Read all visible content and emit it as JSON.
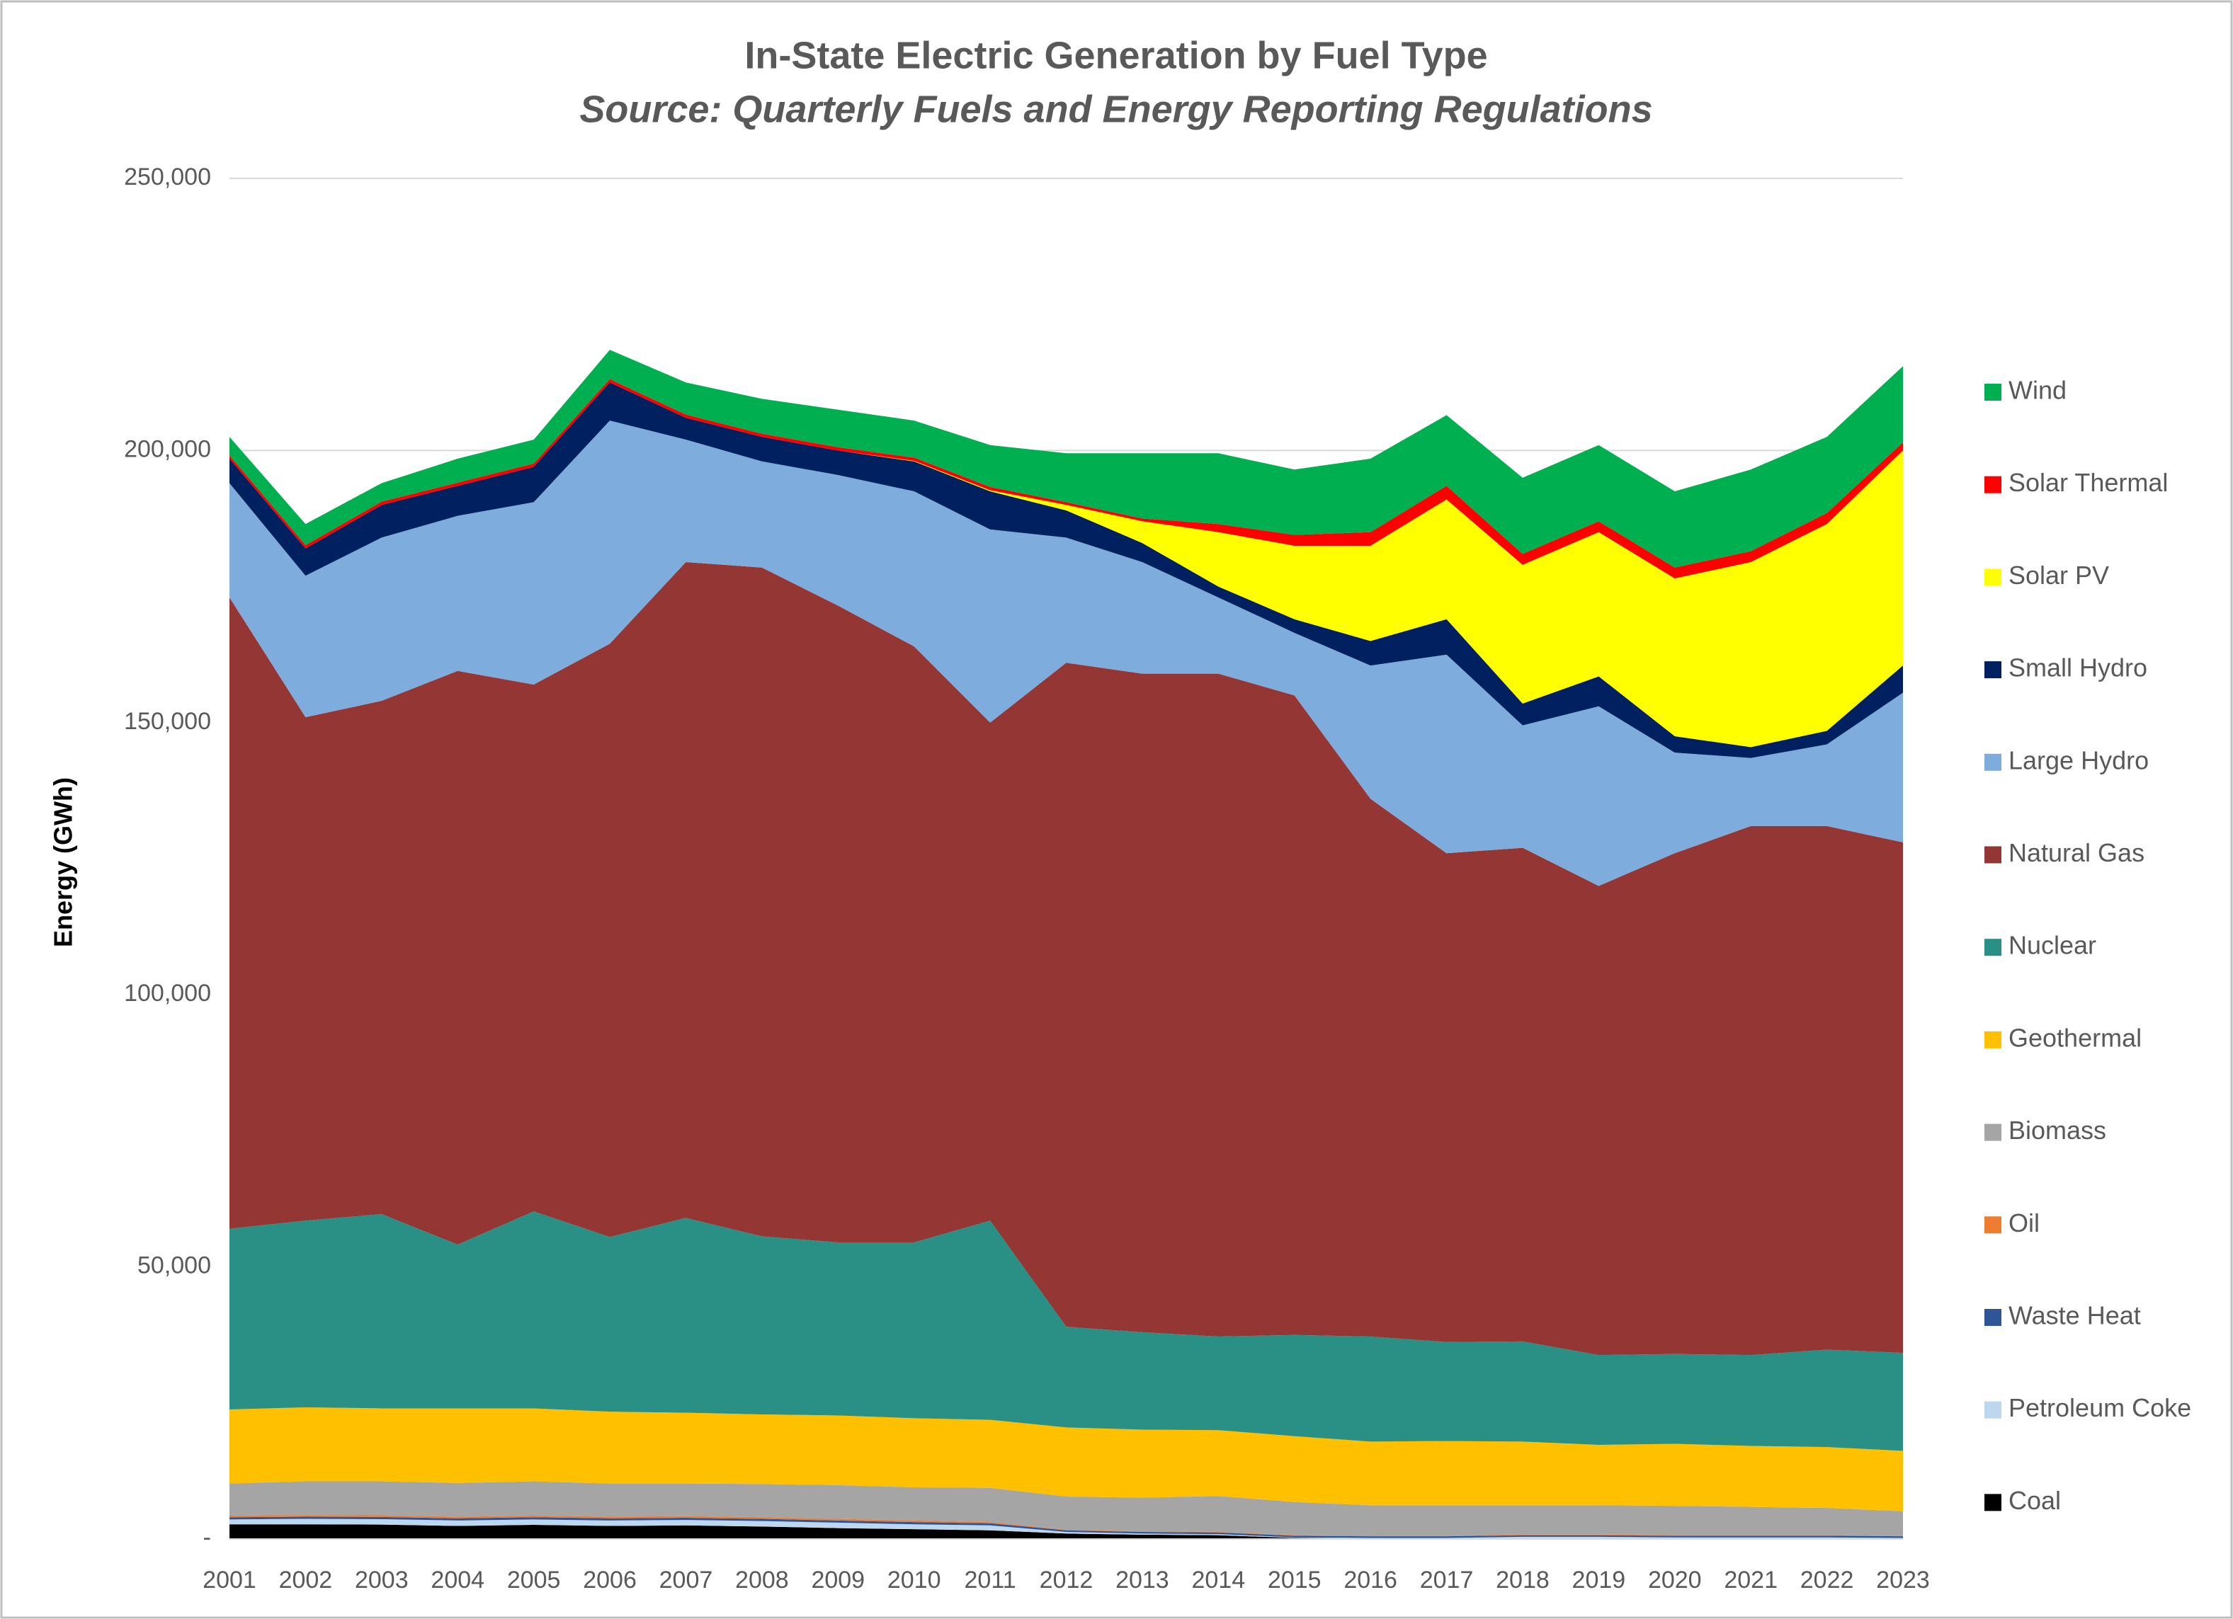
{
  "chart_data": {
    "type": "stacked_area",
    "title": "In-State Electric Generation by Fuel Type",
    "subtitle": "Source: Quarterly Fuels and Energy Reporting Regulations",
    "y_label": "Energy (GWh)",
    "categories": [
      "2001",
      "2002",
      "2003",
      "2004",
      "2005",
      "2006",
      "2007",
      "2008",
      "2009",
      "2010",
      "2011",
      "2012",
      "2013",
      "2014",
      "2015",
      "2016",
      "2017",
      "2018",
      "2019",
      "2020",
      "2021",
      "2022",
      "2023"
    ],
    "ylim": [
      0,
      250000
    ],
    "yticks": [
      {
        "value": 0,
        "label": "-"
      },
      {
        "value": 50000,
        "label": "50,000"
      },
      {
        "value": 100000,
        "label": "100,000"
      },
      {
        "value": 150000,
        "label": "150,000"
      },
      {
        "value": 200000,
        "label": "200,000"
      },
      {
        "value": 250000,
        "label": "250,000"
      }
    ],
    "grid": true,
    "legend": "right",
    "series": [
      {
        "name": "Coal",
        "color": "#000000",
        "values": [
          2700,
          2700,
          2650,
          2400,
          2600,
          2400,
          2500,
          2300,
          2000,
          1800,
          1600,
          1000,
          800,
          700,
          200,
          100,
          100,
          100,
          100,
          100,
          100,
          100,
          100
        ]
      },
      {
        "name": "Petroleum Coke",
        "color": "#bdd7ee",
        "values": [
          900,
          1000,
          1000,
          1000,
          1000,
          1000,
          1000,
          1000,
          1000,
          900,
          900,
          300,
          200,
          200,
          100,
          100,
          100,
          300,
          300,
          200,
          200,
          200,
          100
        ]
      },
      {
        "name": "Waste Heat",
        "color": "#2f5597",
        "values": [
          400,
          400,
          400,
          400,
          400,
          400,
          400,
          400,
          400,
          400,
          400,
          300,
          300,
          300,
          300,
          300,
          300,
          300,
          300,
          300,
          300,
          300,
          300
        ]
      },
      {
        "name": "Oil",
        "color": "#ed7d31",
        "values": [
          300,
          300,
          300,
          300,
          300,
          300,
          300,
          300,
          300,
          300,
          200,
          100,
          100,
          100,
          100,
          100,
          100,
          100,
          100,
          100,
          100,
          100,
          100
        ]
      },
      {
        "name": "Biomass",
        "color": "#a5a5a5",
        "values": [
          5900,
          6200,
          6250,
          6200,
          6300,
          6100,
          6000,
          6100,
          6200,
          6100,
          6300,
          6100,
          6200,
          6600,
          6100,
          5600,
          5600,
          5400,
          5400,
          5400,
          5200,
          5000,
          4500
        ]
      },
      {
        "name": "Geothermal",
        "color": "#ffc000",
        "values": [
          13600,
          13600,
          13400,
          13700,
          13400,
          13200,
          13000,
          12800,
          12800,
          12700,
          12500,
          12700,
          12500,
          12100,
          12100,
          11700,
          11800,
          11700,
          11100,
          11400,
          11200,
          11200,
          11100
        ]
      },
      {
        "name": "Nuclear",
        "color": "#2a9085",
        "values": [
          33200,
          34300,
          35700,
          30100,
          36200,
          32100,
          35800,
          32700,
          31800,
          32300,
          36600,
          18500,
          17900,
          17200,
          18600,
          19300,
          18200,
          18400,
          16500,
          16500,
          16700,
          17900,
          18000
        ]
      },
      {
        "name": "Natural Gas",
        "color": "#943634",
        "values": [
          116000,
          92500,
          94300,
          105400,
          96800,
          109000,
          120500,
          122900,
          117000,
          109500,
          91500,
          122000,
          121000,
          121800,
          117500,
          98800,
          89800,
          90700,
          86200,
          92000,
          97200,
          96200,
          93800
        ]
      },
      {
        "name": "Large Hydro",
        "color": "#7eacdc",
        "values": [
          21000,
          26000,
          30000,
          28500,
          33500,
          41000,
          22500,
          19500,
          24000,
          28500,
          35500,
          23000,
          20500,
          14000,
          11500,
          24500,
          36500,
          22500,
          33000,
          18500,
          12500,
          15000,
          27500
        ]
      },
      {
        "name": "Small Hydro",
        "color": "#002060",
        "values": [
          4500,
          5000,
          6000,
          5500,
          6500,
          7000,
          4000,
          4500,
          4500,
          5500,
          7000,
          5000,
          3500,
          2000,
          2500,
          4500,
          6500,
          4000,
          5500,
          3000,
          2000,
          2500,
          5000
        ]
      },
      {
        "name": "Solar PV",
        "color": "#ffff00",
        "values": [
          0,
          0,
          0,
          0,
          0,
          0,
          0,
          0,
          0,
          100,
          200,
          1000,
          4000,
          10000,
          13500,
          17500,
          22000,
          25500,
          26500,
          29000,
          34000,
          38000,
          39500
        ]
      },
      {
        "name": "Solar Thermal",
        "color": "#ff0000",
        "values": [
          600,
          600,
          600,
          600,
          600,
          600,
          600,
          600,
          600,
          600,
          600,
          500,
          500,
          1500,
          2000,
          2500,
          2500,
          2000,
          2000,
          2000,
          2000,
          2000,
          1500
        ]
      },
      {
        "name": "Wind",
        "color": "#00b050",
        "values": [
          3400,
          3900,
          3400,
          4400,
          4400,
          5400,
          5900,
          6400,
          6900,
          6800,
          7700,
          9000,
          12000,
          13000,
          12000,
          13500,
          13000,
          14000,
          14000,
          14000,
          15000,
          14000,
          14000
        ]
      }
    ]
  }
}
